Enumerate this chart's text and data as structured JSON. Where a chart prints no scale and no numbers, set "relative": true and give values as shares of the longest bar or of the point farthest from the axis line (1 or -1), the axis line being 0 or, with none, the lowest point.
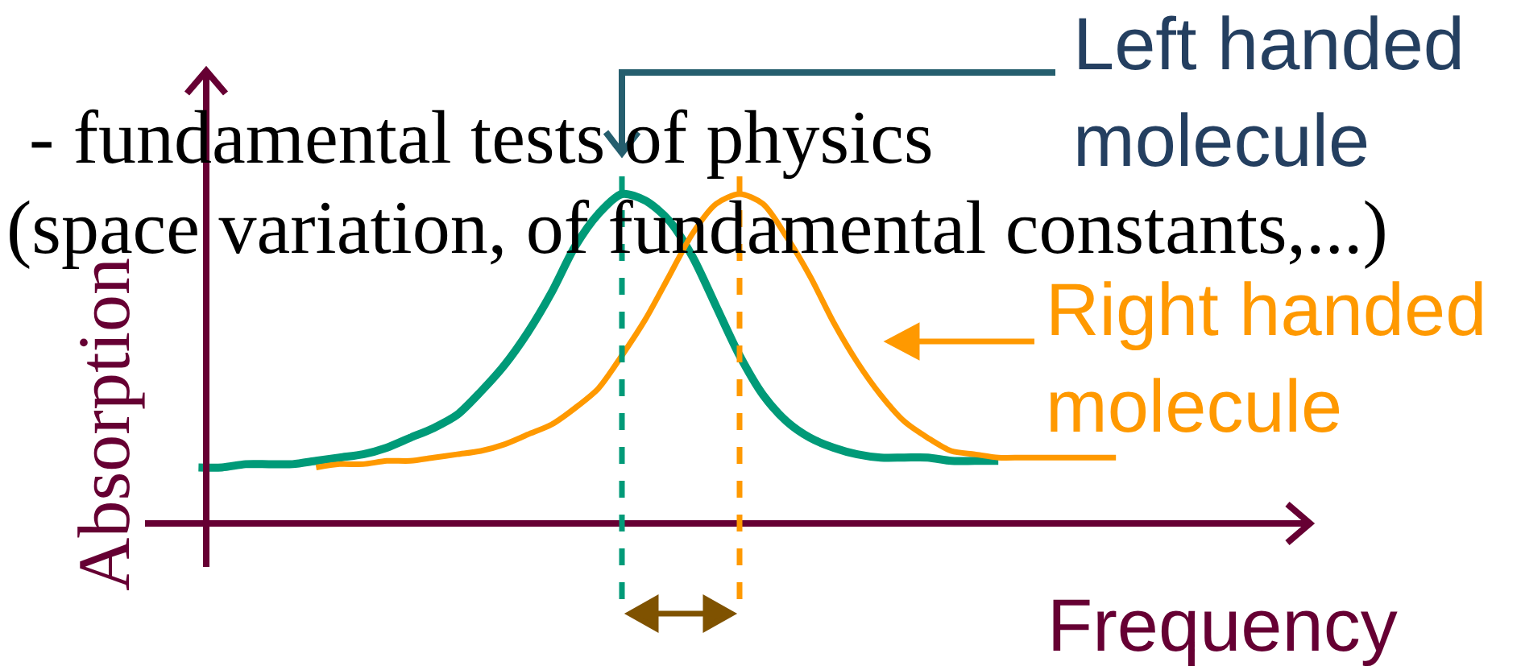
{
  "chart_data": {
    "type": "line",
    "relative": true,
    "xlabel": "Frequency",
    "ylabel": "Absorption",
    "annotations": [
      "- fundamental tests of physics",
      "(space variation, of fundamental constants,...)",
      "Left handed\nmolecule",
      "Right handed\nmolecule"
    ],
    "categories": [
      null,
      null,
      null,
      null,
      null,
      null,
      null,
      null,
      null,
      null,
      null,
      null,
      null,
      null,
      null,
      null,
      null,
      null,
      null,
      null,
      null,
      null,
      null,
      null,
      null,
      null,
      null,
      null,
      null,
      null,
      null,
      null,
      null,
      null,
      null,
      null,
      null,
      null,
      null,
      null
    ],
    "series": [
      {
        "color": "#009a78",
        "values": [
          0.17,
          0.17,
          0.18,
          0.18,
          0.18,
          0.19,
          0.2,
          0.21,
          0.23,
          0.26,
          0.29,
          0.33,
          0.4,
          0.48,
          0.58,
          0.7,
          0.84,
          0.94,
          1.0,
          0.98,
          0.92,
          0.81,
          0.66,
          0.51,
          0.39,
          0.31,
          0.26,
          0.23,
          0.21,
          0.2,
          0.2,
          0.2,
          0.19,
          0.19,
          0.19,
          null,
          null,
          null,
          null,
          null
        ]
      },
      {
        "color": "#ff9900",
        "values": [
          null,
          null,
          null,
          null,
          null,
          0.17,
          0.18,
          0.18,
          0.19,
          0.19,
          0.2,
          0.21,
          0.22,
          0.24,
          0.27,
          0.3,
          0.35,
          0.41,
          0.51,
          0.62,
          0.75,
          0.88,
          0.97,
          1.0,
          0.97,
          0.87,
          0.75,
          0.61,
          0.49,
          0.39,
          0.31,
          0.26,
          0.22,
          0.21,
          0.2,
          0.2,
          0.2,
          0.2,
          0.2,
          0.2
        ]
      }
    ]
  }
}
